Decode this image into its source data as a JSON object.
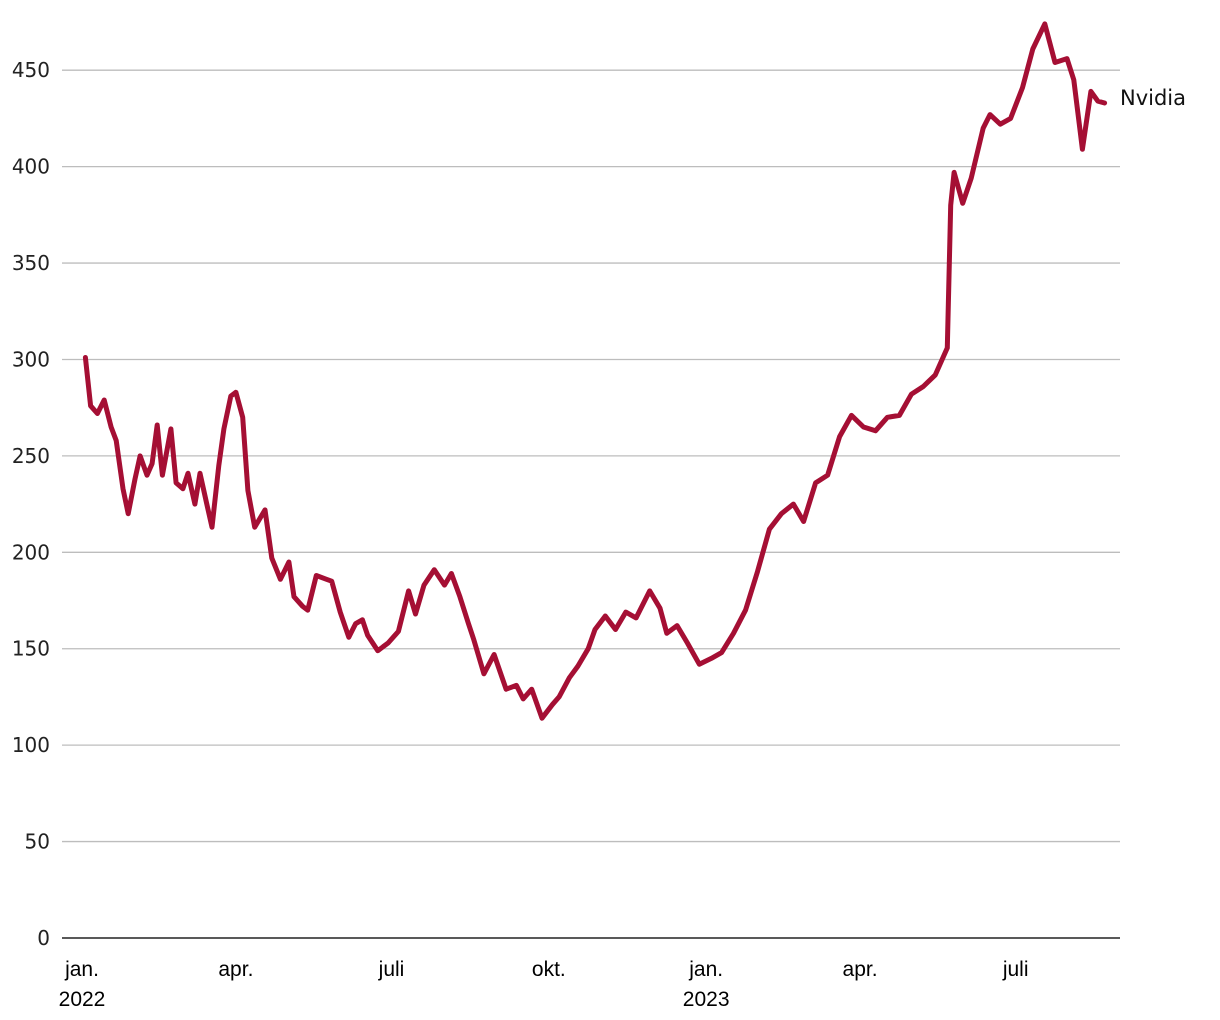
{
  "chart_data": {
    "type": "line",
    "title": "",
    "xlabel": "",
    "ylabel": "",
    "ylim": [
      0,
      475
    ],
    "xlim": [
      "2022-01-01",
      "2023-08-31"
    ],
    "grid": true,
    "yticks": [
      0,
      50,
      100,
      150,
      200,
      250,
      300,
      350,
      400,
      450
    ],
    "xticks": [
      {
        "date": "2022-01-01",
        "lines": [
          "jan.",
          "2022"
        ]
      },
      {
        "date": "2022-04-01",
        "lines": [
          "apr."
        ]
      },
      {
        "date": "2022-07-01",
        "lines": [
          "juli"
        ]
      },
      {
        "date": "2022-10-01",
        "lines": [
          "okt."
        ]
      },
      {
        "date": "2023-01-01",
        "lines": [
          "jan.",
          "2023"
        ]
      },
      {
        "date": "2023-04-01",
        "lines": [
          "apr."
        ]
      },
      {
        "date": "2023-07-01",
        "lines": [
          "juli"
        ]
      }
    ],
    "series": [
      {
        "name": "Nvidia",
        "color": "#a50f34",
        "x": [
          "2022-01-03",
          "2022-01-06",
          "2022-01-10",
          "2022-01-14",
          "2022-01-18",
          "2022-01-21",
          "2022-01-25",
          "2022-01-28",
          "2022-02-01",
          "2022-02-04",
          "2022-02-08",
          "2022-02-11",
          "2022-02-14",
          "2022-02-17",
          "2022-02-22",
          "2022-02-25",
          "2022-03-01",
          "2022-03-04",
          "2022-03-08",
          "2022-03-11",
          "2022-03-15",
          "2022-03-18",
          "2022-03-22",
          "2022-03-25",
          "2022-03-29",
          "2022-04-01",
          "2022-04-05",
          "2022-04-08",
          "2022-04-12",
          "2022-04-18",
          "2022-04-22",
          "2022-04-27",
          "2022-05-02",
          "2022-05-05",
          "2022-05-10",
          "2022-05-13",
          "2022-05-18",
          "2022-05-24",
          "2022-05-27",
          "2022-06-01",
          "2022-06-06",
          "2022-06-10",
          "2022-06-14",
          "2022-06-17",
          "2022-06-23",
          "2022-06-29",
          "2022-07-05",
          "2022-07-11",
          "2022-07-15",
          "2022-07-20",
          "2022-07-26",
          "2022-08-01",
          "2022-08-05",
          "2022-08-10",
          "2022-08-15",
          "2022-08-18",
          "2022-08-24",
          "2022-08-30",
          "2022-09-06",
          "2022-09-12",
          "2022-09-16",
          "2022-09-21",
          "2022-09-27",
          "2022-10-03",
          "2022-10-07",
          "2022-10-13",
          "2022-10-18",
          "2022-10-24",
          "2022-10-28",
          "2022-11-03",
          "2022-11-09",
          "2022-11-15",
          "2022-11-21",
          "2022-11-29",
          "2022-12-05",
          "2022-12-09",
          "2022-12-15",
          "2022-12-21",
          "2022-12-28",
          "2023-01-04",
          "2023-01-10",
          "2023-01-17",
          "2023-01-24",
          "2023-01-31",
          "2023-02-07",
          "2023-02-14",
          "2023-02-21",
          "2023-02-27",
          "2023-03-06",
          "2023-03-13",
          "2023-03-20",
          "2023-03-27",
          "2023-04-03",
          "2023-04-10",
          "2023-04-17",
          "2023-04-24",
          "2023-05-01",
          "2023-05-08",
          "2023-05-15",
          "2023-05-22",
          "2023-05-24",
          "2023-05-26",
          "2023-05-31",
          "2023-06-05",
          "2023-06-12",
          "2023-06-16",
          "2023-06-22",
          "2023-06-28",
          "2023-07-05",
          "2023-07-11",
          "2023-07-18",
          "2023-07-24",
          "2023-07-31",
          "2023-08-04",
          "2023-08-09",
          "2023-08-14",
          "2023-08-18",
          "2023-08-22"
        ],
        "values": [
          301,
          276,
          272,
          279,
          265,
          258,
          233,
          220,
          238,
          250,
          240,
          246,
          266,
          240,
          264,
          236,
          233,
          241,
          225,
          241,
          225,
          213,
          245,
          264,
          281,
          283,
          270,
          232,
          213,
          222,
          197,
          186,
          195,
          177,
          172,
          170,
          188,
          186,
          185,
          169,
          156,
          163,
          165,
          157,
          149,
          153,
          159,
          180,
          168,
          183,
          191,
          183,
          189,
          177,
          163,
          155,
          137,
          147,
          129,
          131,
          124,
          129,
          114,
          121,
          125,
          135,
          141,
          150,
          160,
          167,
          160,
          169,
          166,
          180,
          171,
          158,
          162,
          153,
          142,
          145,
          148,
          158,
          170,
          190,
          212,
          220,
          225,
          216,
          236,
          240,
          260,
          271,
          265,
          263,
          270,
          271,
          282,
          286,
          292,
          306,
          380,
          397,
          381,
          394,
          420,
          427,
          422,
          425,
          441,
          461,
          474,
          454,
          456,
          445,
          409,
          439,
          434,
          433
        ]
      }
    ]
  }
}
